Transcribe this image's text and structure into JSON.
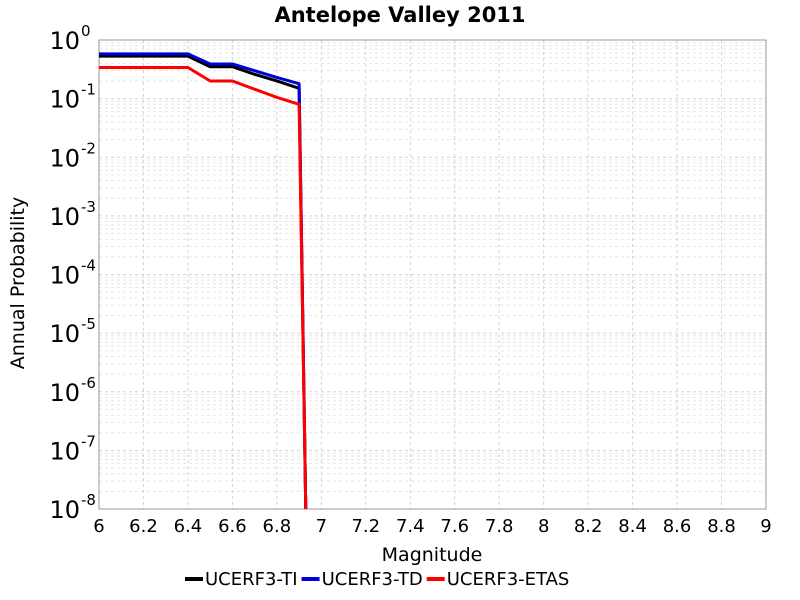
{
  "chart_data": {
    "type": "line",
    "title": "Antelope Valley 2011",
    "xlabel": "Magnitude",
    "ylabel": "Annual Probability",
    "xlim": [
      6,
      9
    ],
    "ylim": [
      1e-08,
      1
    ],
    "yscale": "log",
    "grid": true,
    "legend_position": "bottom",
    "x_ticks": [
      "6",
      "6.2",
      "6.4",
      "6.6",
      "6.8",
      "7",
      "7.2",
      "7.4",
      "7.6",
      "7.8",
      "8",
      "8.2",
      "8.4",
      "8.6",
      "8.8",
      "9"
    ],
    "y_ticks": [
      {
        "base": "10",
        "exp": "0"
      },
      {
        "base": "10",
        "exp": "-1"
      },
      {
        "base": "10",
        "exp": "-2"
      },
      {
        "base": "10",
        "exp": "-3"
      },
      {
        "base": "10",
        "exp": "-4"
      },
      {
        "base": "10",
        "exp": "-5"
      },
      {
        "base": "10",
        "exp": "-6"
      },
      {
        "base": "10",
        "exp": "-7"
      },
      {
        "base": "10",
        "exp": "-8"
      }
    ],
    "series": [
      {
        "name": "UCERF3-TI",
        "color": "#000000",
        "points": [
          [
            6.0,
            0.53
          ],
          [
            6.1,
            0.53
          ],
          [
            6.2,
            0.53
          ],
          [
            6.3,
            0.53
          ],
          [
            6.4,
            0.53
          ],
          [
            6.5,
            0.35
          ],
          [
            6.6,
            0.35
          ],
          [
            6.7,
            0.26
          ],
          [
            6.8,
            0.2
          ],
          [
            6.9,
            0.15
          ],
          [
            6.93,
            1e-08
          ]
        ]
      },
      {
        "name": "UCERF3-TD",
        "color": "#0000dd",
        "points": [
          [
            6.0,
            0.58
          ],
          [
            6.1,
            0.58
          ],
          [
            6.2,
            0.58
          ],
          [
            6.3,
            0.58
          ],
          [
            6.4,
            0.58
          ],
          [
            6.5,
            0.39
          ],
          [
            6.6,
            0.39
          ],
          [
            6.7,
            0.3
          ],
          [
            6.8,
            0.23
          ],
          [
            6.9,
            0.18
          ],
          [
            6.93,
            1e-08
          ]
        ]
      },
      {
        "name": "UCERF3-ETAS",
        "color": "#ff0000",
        "points": [
          [
            6.0,
            0.34
          ],
          [
            6.1,
            0.34
          ],
          [
            6.2,
            0.34
          ],
          [
            6.3,
            0.34
          ],
          [
            6.4,
            0.34
          ],
          [
            6.5,
            0.2
          ],
          [
            6.6,
            0.2
          ],
          [
            6.7,
            0.145
          ],
          [
            6.8,
            0.105
          ],
          [
            6.9,
            0.08
          ],
          [
            6.93,
            1e-08
          ]
        ]
      }
    ]
  }
}
